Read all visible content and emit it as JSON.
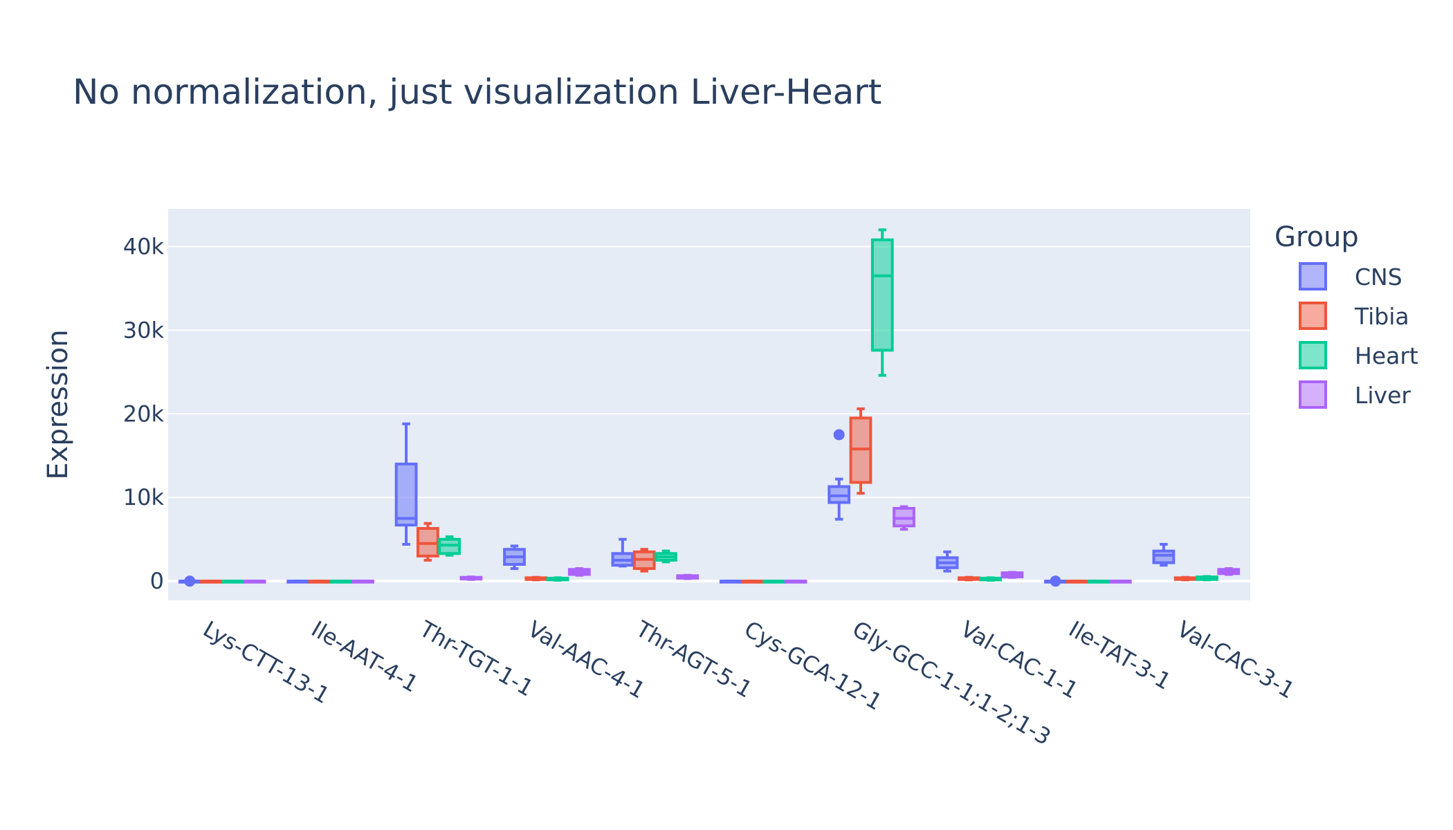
{
  "chart_data": {
    "type": "box",
    "title": "No normalization, just visualization Liver-Heart",
    "xlabel": "",
    "ylabel": "Expression",
    "ylim": [
      -2300,
      44500
    ],
    "y_ticks": [
      0,
      10000,
      20000,
      30000,
      40000
    ],
    "y_tick_labels": [
      "0",
      "10k",
      "20k",
      "30k",
      "40k"
    ],
    "grid": true,
    "legend_title": "Group",
    "legend_position": "right",
    "categories": [
      "Lys-CTT-13-1",
      "Ile-AAT-4-1",
      "Thr-TGT-1-1",
      "Val-AAC-4-1",
      "Thr-AGT-5-1",
      "Cys-GCA-12-1",
      "Gly-GCC-1-1;1-2;1-3",
      "Val-CAC-1-1",
      "Ile-TAT-3-1",
      "Val-CAC-3-1"
    ],
    "series": [
      {
        "name": "CNS",
        "color": "#636efa",
        "boxes": [
          {
            "min": 0,
            "q1": 0,
            "median": 0,
            "q3": 0,
            "max": 0
          },
          {
            "min": 0,
            "q1": 0,
            "median": 0,
            "q3": 0,
            "max": 0
          },
          {
            "min": 4400,
            "q1": 6700,
            "median": 7500,
            "q3": 14000,
            "max": 18800
          },
          {
            "min": 1500,
            "q1": 2000,
            "median": 2900,
            "q3": 3800,
            "max": 4200
          },
          {
            "min": 1800,
            "q1": 1900,
            "median": 2500,
            "q3": 3300,
            "max": 5000
          },
          {
            "min": 0,
            "q1": 0,
            "median": 0,
            "q3": 0,
            "max": 0
          },
          {
            "min": 7400,
            "q1": 9400,
            "median": 10200,
            "q3": 11300,
            "max": 12200,
            "outliers": [
              17500
            ]
          },
          {
            "min": 1200,
            "q1": 1600,
            "median": 2200,
            "q3": 2800,
            "max": 3500
          },
          {
            "min": 0,
            "q1": 0,
            "median": 0,
            "q3": 0,
            "max": 0
          },
          {
            "min": 1900,
            "q1": 2200,
            "median": 3100,
            "q3": 3600,
            "max": 4400
          }
        ]
      },
      {
        "name": "Tibia",
        "color": "#ef553b",
        "boxes": [
          {
            "min": 0,
            "q1": 0,
            "median": 0,
            "q3": 0,
            "max": 0
          },
          {
            "min": 0,
            "q1": 0,
            "median": 0,
            "q3": 0,
            "max": 0
          },
          {
            "min": 2500,
            "q1": 3000,
            "median": 4500,
            "q3": 6300,
            "max": 6900
          },
          {
            "min": 150,
            "q1": 200,
            "median": 300,
            "q3": 400,
            "max": 450
          },
          {
            "min": 1200,
            "q1": 1500,
            "median": 2600,
            "q3": 3500,
            "max": 3800
          },
          {
            "min": 0,
            "q1": 0,
            "median": 0,
            "q3": 0,
            "max": 0
          },
          {
            "min": 10500,
            "q1": 11800,
            "median": 15800,
            "q3": 19500,
            "max": 20600
          },
          {
            "min": 150,
            "q1": 200,
            "median": 300,
            "q3": 400,
            "max": 450
          },
          {
            "min": 0,
            "q1": 0,
            "median": 0,
            "q3": 0,
            "max": 0
          },
          {
            "min": 150,
            "q1": 200,
            "median": 300,
            "q3": 400,
            "max": 450
          }
        ]
      },
      {
        "name": "Heart",
        "color": "#00cc96",
        "boxes": [
          {
            "min": 0,
            "q1": 0,
            "median": 0,
            "q3": 0,
            "max": 0
          },
          {
            "min": 0,
            "q1": 0,
            "median": 0,
            "q3": 0,
            "max": 0
          },
          {
            "min": 3100,
            "q1": 3300,
            "median": 4300,
            "q3": 5000,
            "max": 5300
          },
          {
            "min": 100,
            "q1": 150,
            "median": 250,
            "q3": 350,
            "max": 400
          },
          {
            "min": 2300,
            "q1": 2500,
            "median": 2900,
            "q3": 3300,
            "max": 3600
          },
          {
            "min": 0,
            "q1": 0,
            "median": 0,
            "q3": 0,
            "max": 0
          },
          {
            "min": 24600,
            "q1": 27600,
            "median": 36500,
            "q3": 40800,
            "max": 42000
          },
          {
            "min": 100,
            "q1": 150,
            "median": 250,
            "q3": 350,
            "max": 400
          },
          {
            "min": 0,
            "q1": 0,
            "median": 0,
            "q3": 0,
            "max": 0
          },
          {
            "min": 150,
            "q1": 200,
            "median": 350,
            "q3": 500,
            "max": 550
          }
        ]
      },
      {
        "name": "Liver",
        "color": "#ab63fa",
        "boxes": [
          {
            "min": 0,
            "q1": 0,
            "median": 0,
            "q3": 0,
            "max": 0
          },
          {
            "min": 0,
            "q1": 0,
            "median": 0,
            "q3": 0,
            "max": 0
          },
          {
            "min": 200,
            "q1": 250,
            "median": 350,
            "q3": 450,
            "max": 500
          },
          {
            "min": 700,
            "q1": 800,
            "median": 1100,
            "q3": 1400,
            "max": 1500
          },
          {
            "min": 300,
            "q1": 350,
            "median": 450,
            "q3": 650,
            "max": 700
          },
          {
            "min": 0,
            "q1": 0,
            "median": 0,
            "q3": 0,
            "max": 0
          },
          {
            "min": 6200,
            "q1": 6600,
            "median": 7500,
            "q3": 8700,
            "max": 8900
          },
          {
            "min": 450,
            "q1": 500,
            "median": 750,
            "q3": 1000,
            "max": 1050
          },
          {
            "min": 0,
            "q1": 0,
            "median": 0,
            "q3": 0,
            "max": 0
          },
          {
            "min": 800,
            "q1": 900,
            "median": 1100,
            "q3": 1400,
            "max": 1500
          }
        ]
      }
    ]
  }
}
